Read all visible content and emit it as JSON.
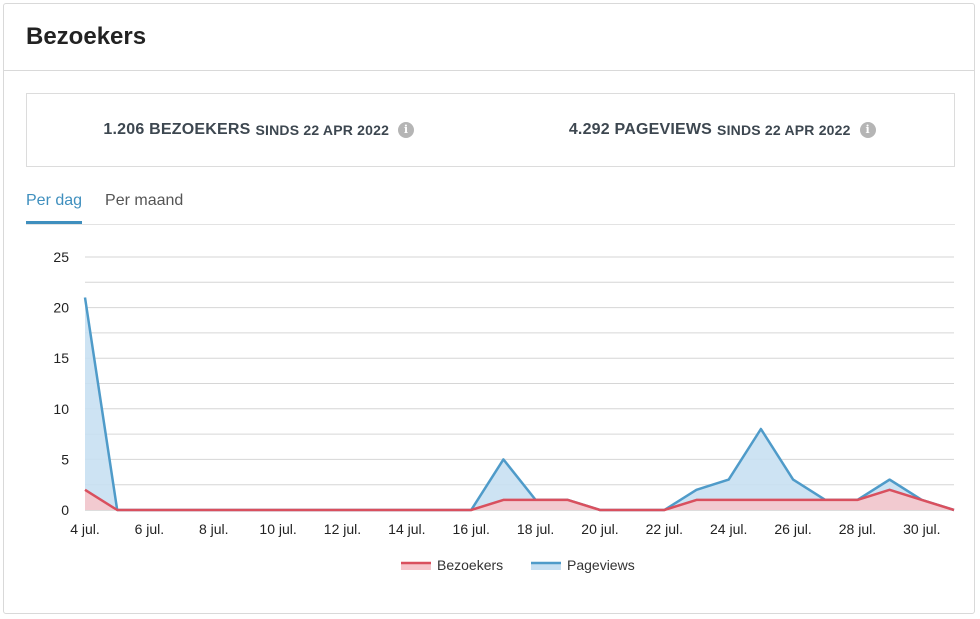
{
  "header": {
    "title": "Bezoekers"
  },
  "stats": {
    "visitors": {
      "count": "1.206 BEZOEKERS",
      "since": "SINDS 22 APR 2022"
    },
    "pageviews": {
      "count": "4.292 PAGEVIEWS",
      "since": "SINDS 22 APR 2022"
    },
    "info_icon": "info-icon"
  },
  "tabs": [
    {
      "label": "Per dag",
      "active": true
    },
    {
      "label": "Per maand",
      "active": false
    }
  ],
  "colors": {
    "accent": "#3f8fbe",
    "visitors_line": "#d9505e",
    "visitors_fill": "#f6c6cc",
    "pageviews_line": "#4f9bc9",
    "pageviews_fill": "#c8e0f2"
  },
  "chart_data": {
    "type": "area",
    "x": [
      "4 jul.",
      "5 jul.",
      "6 jul.",
      "7 jul.",
      "8 jul.",
      "9 jul.",
      "10 jul.",
      "11 jul.",
      "12 jul.",
      "13 jul.",
      "14 jul.",
      "15 jul.",
      "16 jul.",
      "17 jul.",
      "18 jul.",
      "19 jul.",
      "20 jul.",
      "21 jul.",
      "22 jul.",
      "23 jul.",
      "24 jul.",
      "25 jul.",
      "26 jul.",
      "27 jul.",
      "28 jul.",
      "29 jul.",
      "30 jul.",
      "31 jul."
    ],
    "x_tick_labels": [
      "4 jul.",
      "6 jul.",
      "8 jul.",
      "10 jul.",
      "12 jul.",
      "14 jul.",
      "16 jul.",
      "18 jul.",
      "20 jul.",
      "22 jul.",
      "24 jul.",
      "26 jul.",
      "28 jul.",
      "30 jul."
    ],
    "series": [
      {
        "name": "Bezoekers",
        "values": [
          2,
          0,
          0,
          0,
          0,
          0,
          0,
          0,
          0,
          0,
          0,
          0,
          0,
          1,
          1,
          1,
          0,
          0,
          0,
          1,
          1,
          1,
          1,
          1,
          1,
          2,
          1,
          0
        ]
      },
      {
        "name": "Pageviews",
        "values": [
          21,
          0,
          0,
          0,
          0,
          0,
          0,
          0,
          0,
          0,
          0,
          0,
          0,
          5,
          1,
          1,
          0,
          0,
          0,
          2,
          3,
          8,
          3,
          1,
          1,
          3,
          1,
          0
        ]
      }
    ],
    "ylim": [
      0,
      25
    ],
    "y_ticks": [
      0,
      5,
      10,
      15,
      20,
      25
    ],
    "grid": true,
    "legend_position": "bottom"
  }
}
